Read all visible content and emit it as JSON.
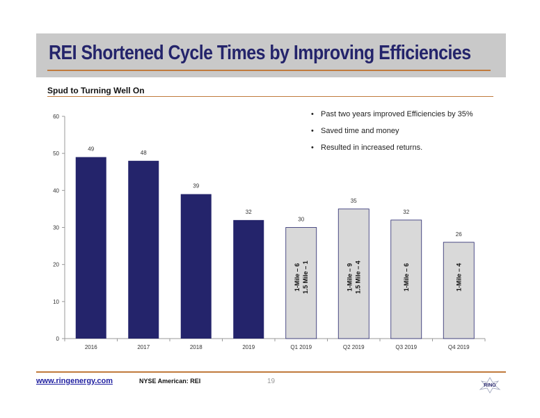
{
  "slide": {
    "title": "REI Shortened Cycle Times by Improving Efficiencies",
    "subtitle": "Spud to Turning Well On"
  },
  "bullets": [
    "Past two years improved Efficiencies by 35%",
    "Saved time and money",
    "Resulted in increased returns."
  ],
  "footer": {
    "link": "www.ringenergy.com",
    "exchange": "NYSE American: REI",
    "page_number": "19",
    "logo_text": "RING"
  },
  "colors": {
    "annual_bar": "#24246b",
    "quarter_bar": "#d9d9d9",
    "title": "#24246b",
    "accent_rule": "#c07a3c"
  },
  "chart_data": {
    "type": "bar",
    "title": "",
    "xlabel": "",
    "ylabel": "",
    "ylim": [
      0,
      60
    ],
    "yticks": [
      0,
      10,
      20,
      30,
      40,
      50,
      60
    ],
    "grid": false,
    "categories": [
      "2016",
      "2017",
      "2018",
      "2019",
      "Q1 2019",
      "Q2 2019",
      "Q3 2019",
      "Q4 2019"
    ],
    "values": [
      49,
      48,
      39,
      32,
      30,
      35,
      32,
      26
    ],
    "data_labels": [
      "49",
      "48",
      "39",
      "32",
      "30",
      "35",
      "32",
      "26"
    ],
    "bar_style": [
      "annual",
      "annual",
      "annual",
      "annual",
      "quarter",
      "quarter",
      "quarter",
      "quarter"
    ],
    "bar_annotations": [
      [],
      [],
      [],
      [],
      [
        "1-Mile – 6",
        "1.5 Mile – 1"
      ],
      [
        "1-Mile – 9",
        "1.5 Mile – 4"
      ],
      [
        "1-Mile – 6"
      ],
      [
        "1-Mile – 4"
      ]
    ]
  }
}
